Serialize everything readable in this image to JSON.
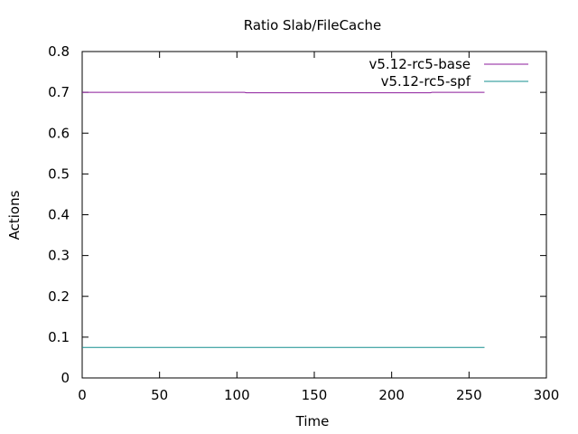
{
  "chart_data": {
    "type": "line",
    "title": "Ratio Slab/FileCache",
    "xlabel": "Time",
    "ylabel": "Actions",
    "xlim": [
      0,
      300
    ],
    "ylim": [
      0,
      0.8
    ],
    "xticks": [
      0,
      50,
      100,
      150,
      200,
      250,
      300
    ],
    "yticks": [
      0,
      0.1,
      0.2,
      0.3,
      0.4,
      0.5,
      0.6,
      0.7,
      0.8
    ],
    "grid": false,
    "legend_position": "top-right",
    "series": [
      {
        "name": "v5.12-rc5-base",
        "color": "#8b1a9b",
        "x": [
          0,
          105,
          106,
          225,
          226,
          260
        ],
        "y": [
          0.7,
          0.7,
          0.699,
          0.699,
          0.7,
          0.7
        ]
      },
      {
        "name": "v5.12-rc5-spf",
        "color": "#138f8f",
        "x": [
          0,
          260
        ],
        "y": [
          0.075,
          0.075
        ]
      }
    ]
  }
}
